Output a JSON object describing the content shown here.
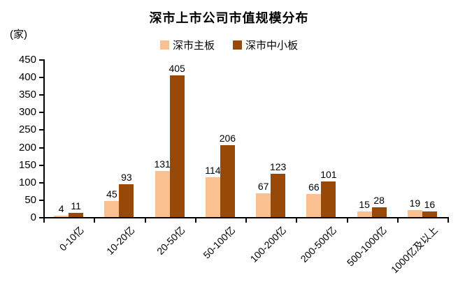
{
  "title": "深市上市公司市值规模分布",
  "y_unit": "(家)",
  "colors": {
    "mainboard": "#FAC090",
    "sme": "#984807",
    "axis": "#000000",
    "text": "#000000",
    "background": "#FFFFFF"
  },
  "legend": [
    {
      "label": "深市主板",
      "color": "#FAC090"
    },
    {
      "label": "深市中小板",
      "color": "#984807"
    }
  ],
  "chart_data": {
    "type": "bar",
    "title": "深市上市公司市值规模分布",
    "ylabel": "(家)",
    "xlabel": "",
    "categories": [
      "0-10亿",
      "10-20亿",
      "20-50亿",
      "50-100亿",
      "100-200亿",
      "200-500亿",
      "500-1000亿",
      "1000亿及以上"
    ],
    "series": [
      {
        "name": "深市主板",
        "color": "#FAC090",
        "values": [
          4,
          45,
          131,
          114,
          67,
          66,
          15,
          19
        ]
      },
      {
        "name": "深市中小板",
        "color": "#984807",
        "values": [
          11,
          93,
          405,
          206,
          123,
          101,
          28,
          16
        ]
      }
    ],
    "ylim": [
      0,
      450
    ],
    "ytick_step": 50,
    "grid": false,
    "legend_position": "top",
    "data_labels": true,
    "x_label_rotation_deg": -45
  }
}
